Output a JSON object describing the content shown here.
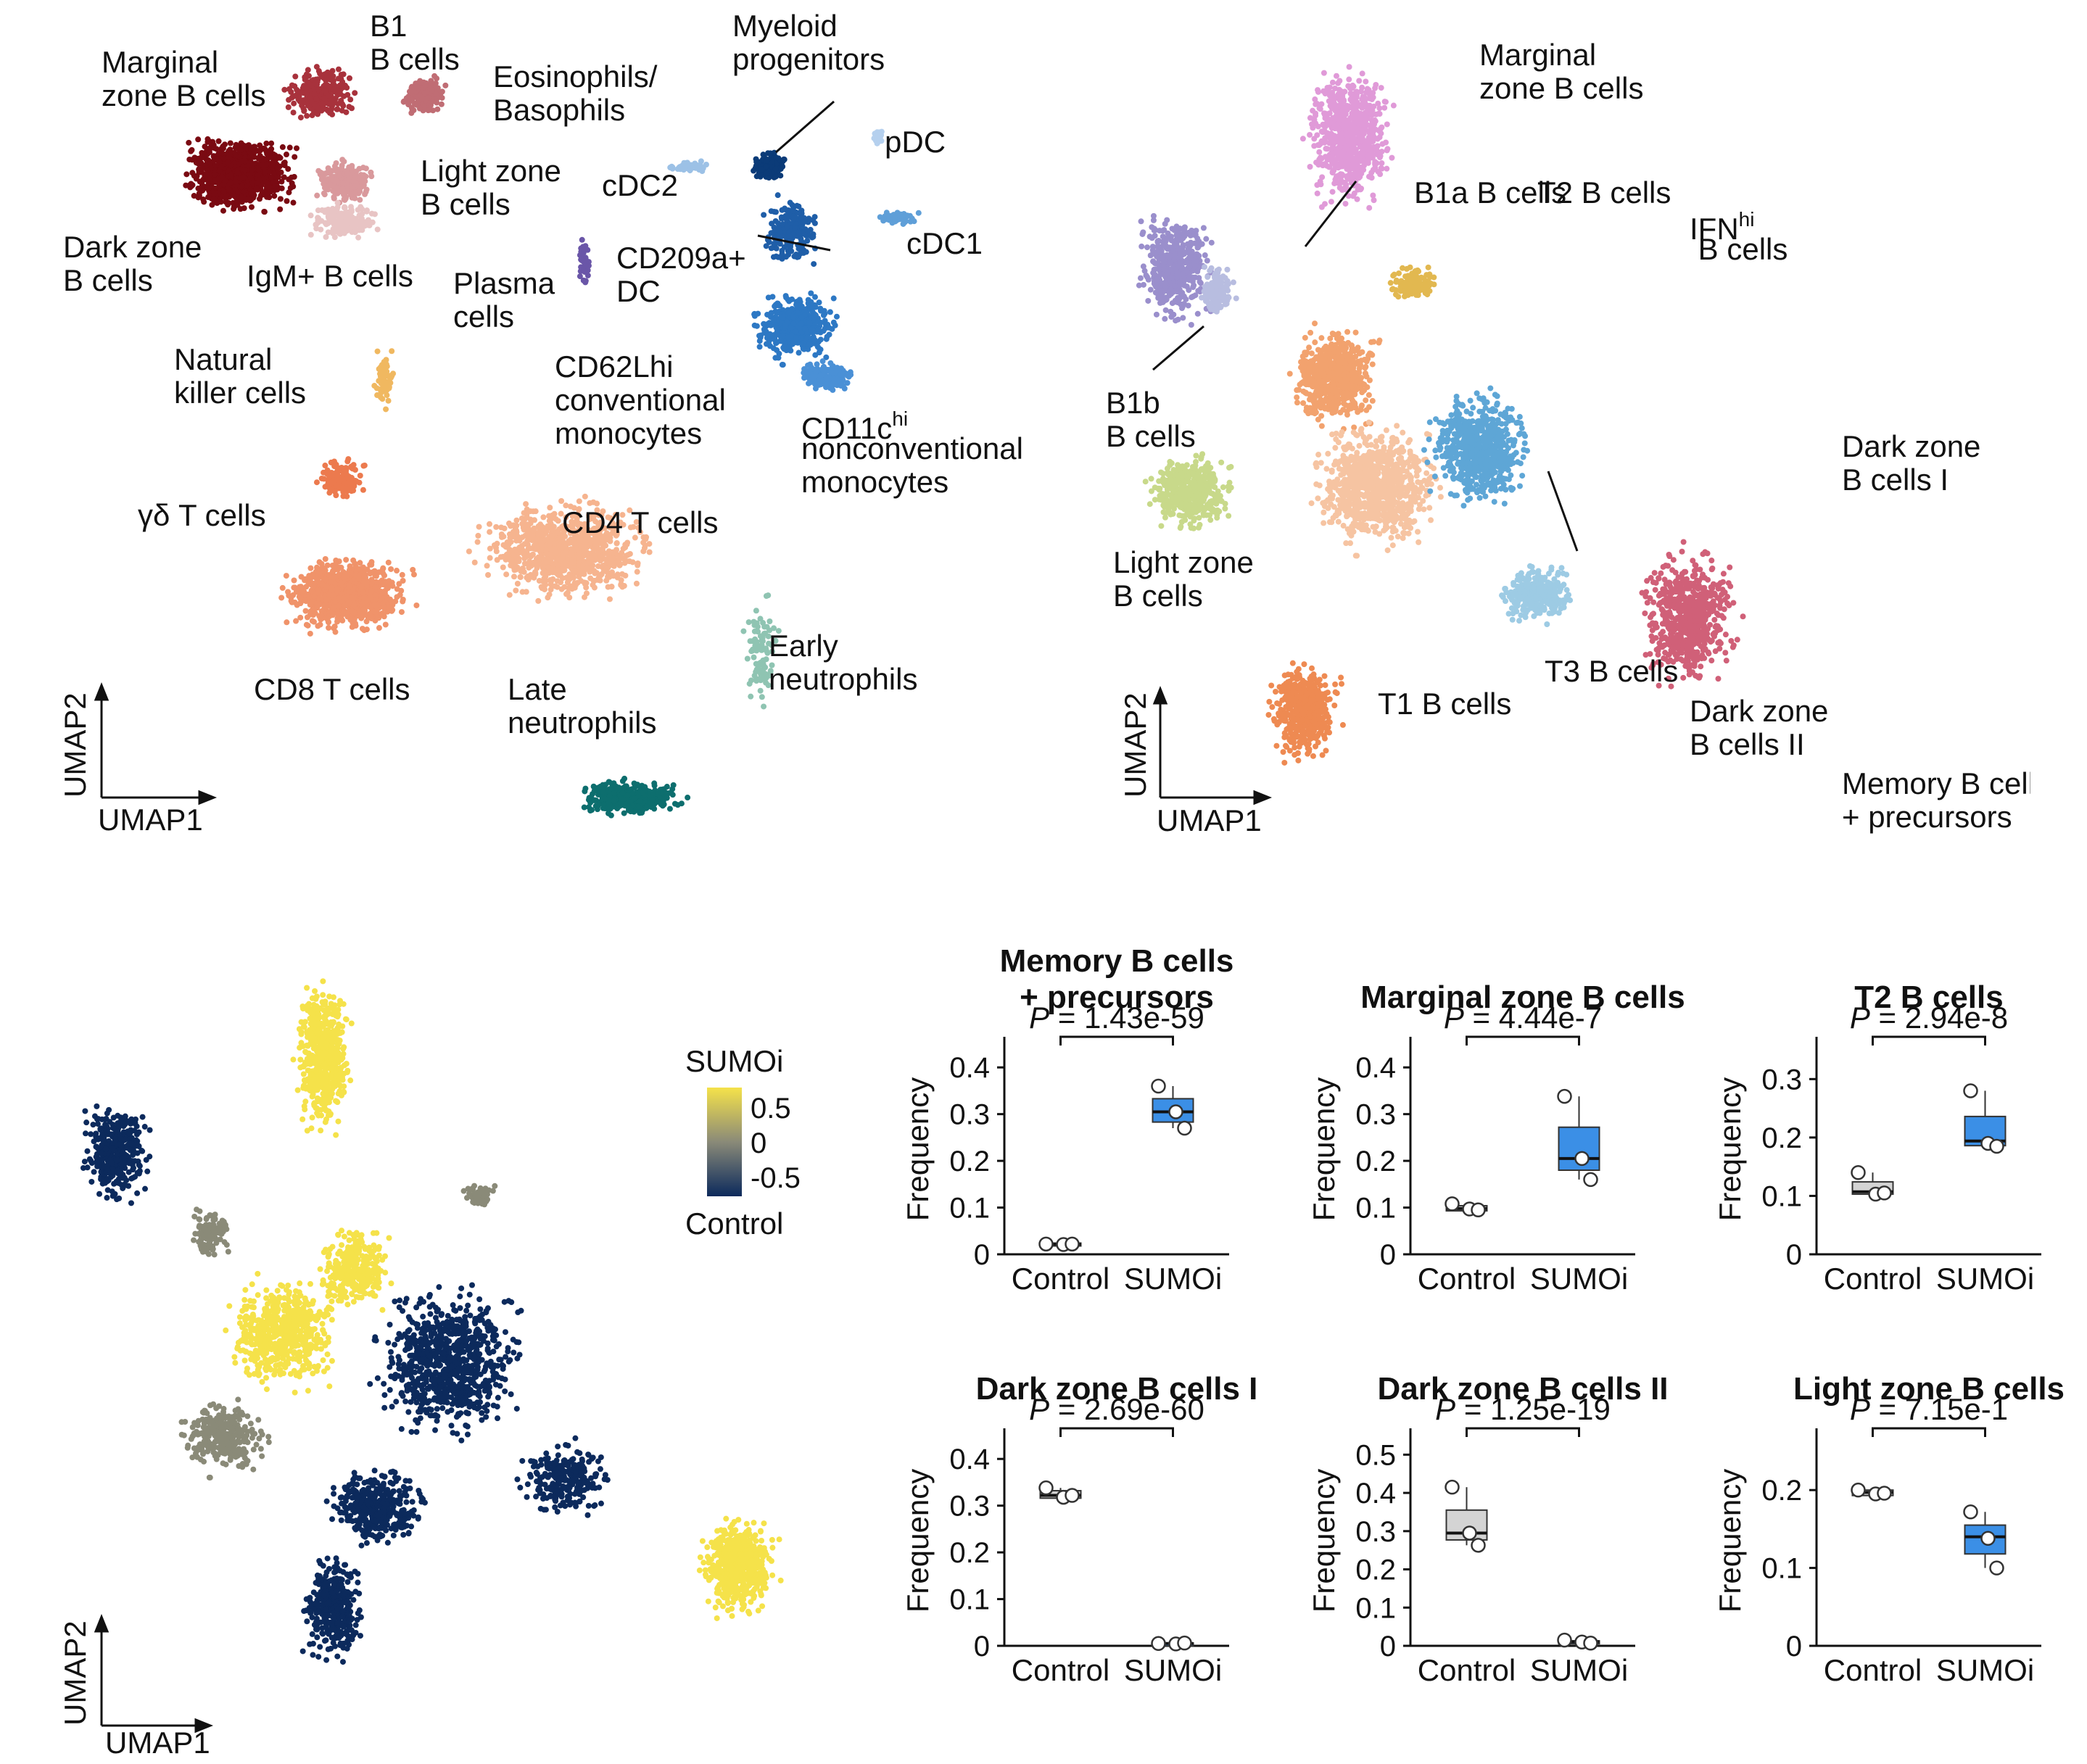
{
  "umap_all": {
    "axis_x": "UMAP1",
    "axis_y": "UMAP2",
    "labels": [
      {
        "id": "mzb",
        "lines": [
          "Marginal",
          "zone B cells"
        ]
      },
      {
        "id": "b1",
        "lines": [
          "B1",
          "B cells"
        ]
      },
      {
        "id": "eos",
        "lines": [
          "Eosinophils/",
          "Basophils"
        ]
      },
      {
        "id": "myp",
        "lines": [
          "Myeloid",
          "progenitors"
        ]
      },
      {
        "id": "pdc",
        "lines": [
          "pDC"
        ]
      },
      {
        "id": "lzb",
        "lines": [
          "Light zone",
          "B cells"
        ]
      },
      {
        "id": "cdc2",
        "lines": [
          "cDC2"
        ]
      },
      {
        "id": "dzb",
        "lines": [
          "Dark zone",
          "B cells"
        ]
      },
      {
        "id": "igm",
        "lines": [
          "IgM+ B cells"
        ]
      },
      {
        "id": "cd209",
        "lines": [
          "CD209a+",
          "DC"
        ]
      },
      {
        "id": "cdc1",
        "lines": [
          "cDC1"
        ]
      },
      {
        "id": "plasma",
        "lines": [
          "Plasma",
          "cells"
        ]
      },
      {
        "id": "nk",
        "lines": [
          "Natural",
          "killer cells"
        ]
      },
      {
        "id": "cd62",
        "lines": [
          "CD62Lhi",
          "conventional",
          "monocytes"
        ]
      },
      {
        "id": "cd11c",
        "lines": [
          "CD11c",
          "nonconventional",
          "monocytes"
        ],
        "sup": "hi"
      },
      {
        "id": "gdt",
        "lines": [
          "γδ T cells"
        ]
      },
      {
        "id": "cd4",
        "lines": [
          "CD4 T cells"
        ]
      },
      {
        "id": "cd8",
        "lines": [
          "CD8 T cells"
        ]
      },
      {
        "id": "late",
        "lines": [
          "Late",
          "neutrophils"
        ]
      },
      {
        "id": "early",
        "lines": [
          "Early",
          "neutrophils"
        ]
      }
    ],
    "colors": {
      "dzb": "#7a0a12",
      "mzb": "#a8323c",
      "b1": "#c06d74",
      "lzb": "#d9999c",
      "igm": "#e8c4c4",
      "eos": "#e06a8a",
      "myp": "#0b3b78",
      "cdc2": "#9cc1e6",
      "pdc": "#b5d0ee",
      "cdc1": "#5f9fd8",
      "cd209": "#1f5ea8",
      "plasma": "#6a56a8",
      "cd62": "#2d78c4",
      "cd11c": "#4a90d6",
      "nk": "#f0b860",
      "gdt": "#ec7a4e",
      "cd4": "#f6b48f",
      "cd8": "#f0936a",
      "late": "#0d6e6e",
      "early": "#8fc4b2"
    }
  },
  "umap_b": {
    "axis_x": "UMAP1",
    "axis_y": "UMAP2",
    "labels": [
      {
        "id": "mzb",
        "lines": [
          "Marginal",
          "zone B cells"
        ]
      },
      {
        "id": "b1a",
        "lines": [
          "B1a B cells"
        ]
      },
      {
        "id": "t2",
        "lines": [
          "T2 B cells"
        ]
      },
      {
        "id": "ifn",
        "lines": [
          "IFN",
          " B cells"
        ],
        "sup": "hi"
      },
      {
        "id": "b1b",
        "lines": [
          "B1b",
          "B cells"
        ]
      },
      {
        "id": "dz1",
        "lines": [
          "Dark zone",
          "B cells I"
        ]
      },
      {
        "id": "lz",
        "lines": [
          "Light zone",
          "B cells"
        ]
      },
      {
        "id": "t3",
        "lines": [
          "T3 B cells"
        ]
      },
      {
        "id": "t1",
        "lines": [
          "T1 B cells"
        ]
      },
      {
        "id": "dz2",
        "lines": [
          "Dark zone",
          "B cells II"
        ]
      },
      {
        "id": "mem",
        "lines": [
          "Memory B cells",
          "+ precursors"
        ]
      }
    ],
    "colors": {
      "mzb": "#e09ad8",
      "b1a": "#9a8fcc",
      "b1b": "#b8bde0",
      "ifn": "#e2b850",
      "t2": "#f2a26e",
      "t3": "#f6c4a2",
      "lz": "#c8d98a",
      "dz1": "#5ea6d6",
      "dz2": "#9dcbe4",
      "t1": "#ee8a52",
      "mem": "#d06078"
    }
  },
  "umap_sumo": {
    "axis_x": "UMAP1",
    "axis_y": "UMAP2",
    "legend_title": "SUMOi",
    "legend_ticks": [
      "0.5",
      "0",
      "-0.5"
    ],
    "legend_bottom": "Control",
    "color_high": "#f5e24a",
    "color_mid": "#8a8a78",
    "color_low": "#0c2a5c"
  },
  "chart_data": [
    {
      "type": "box",
      "title": [
        "Memory B cells",
        "+ precursors"
      ],
      "pvalue": "1.43e-59",
      "ylabel": "Frequency",
      "categories": [
        "Control",
        "SUMOi"
      ],
      "ylim": [
        0,
        0.45
      ],
      "yticks": [
        "0",
        "0.1",
        "0.2",
        "0.3",
        "0.4"
      ],
      "ytickvals": [
        0,
        0.1,
        0.2,
        0.3,
        0.4
      ],
      "boxes": [
        {
          "q1": 0.021,
          "med": 0.022,
          "q3": 0.024,
          "lo": 0.021,
          "hi": 0.024,
          "pts": [
            0.022,
            0.021,
            0.022
          ]
        },
        {
          "q1": 0.283,
          "med": 0.305,
          "q3": 0.333,
          "lo": 0.27,
          "hi": 0.36,
          "pts": [
            0.36,
            0.305,
            0.27
          ]
        }
      ]
    },
    {
      "type": "box",
      "title": [
        "Marginal zone B cells"
      ],
      "pvalue": "4.44e-7",
      "ylabel": "Frequency",
      "categories": [
        "Control",
        "SUMOi"
      ],
      "ylim": [
        0,
        0.45
      ],
      "yticks": [
        "0",
        "0.1",
        "0.2",
        "0.3",
        "0.4"
      ],
      "ytickvals": [
        0,
        0.1,
        0.2,
        0.3,
        0.4
      ],
      "boxes": [
        {
          "q1": 0.093,
          "med": 0.098,
          "q3": 0.104,
          "lo": 0.093,
          "hi": 0.108,
          "pts": [
            0.108,
            0.097,
            0.095
          ]
        },
        {
          "q1": 0.18,
          "med": 0.205,
          "q3": 0.272,
          "lo": 0.16,
          "hi": 0.338,
          "pts": [
            0.338,
            0.205,
            0.16
          ]
        }
      ]
    },
    {
      "type": "box",
      "title": [
        "T2 B cells"
      ],
      "pvalue": "2.94e-8",
      "ylabel": "Frequency",
      "categories": [
        "Control",
        "SUMOi"
      ],
      "ylim": [
        0,
        0.36
      ],
      "yticks": [
        "0",
        "0.1",
        "0.2",
        "0.3"
      ],
      "ytickvals": [
        0,
        0.1,
        0.2,
        0.3
      ],
      "boxes": [
        {
          "q1": 0.103,
          "med": 0.107,
          "q3": 0.124,
          "lo": 0.102,
          "hi": 0.14,
          "pts": [
            0.14,
            0.103,
            0.105
          ]
        },
        {
          "q1": 0.186,
          "med": 0.194,
          "q3": 0.236,
          "lo": 0.18,
          "hi": 0.28,
          "pts": [
            0.28,
            0.19,
            0.185
          ]
        }
      ]
    },
    {
      "type": "box",
      "title": [
        "Dark zone B cells I"
      ],
      "pvalue": "2.69e-60",
      "ylabel": "Frequency",
      "categories": [
        "Control",
        "SUMOi"
      ],
      "ylim": [
        0,
        0.45
      ],
      "yticks": [
        "0",
        "0.1",
        "0.2",
        "0.3",
        "0.4"
      ],
      "ytickvals": [
        0,
        0.1,
        0.2,
        0.3,
        0.4
      ],
      "boxes": [
        {
          "q1": 0.316,
          "med": 0.322,
          "q3": 0.332,
          "lo": 0.316,
          "hi": 0.338,
          "pts": [
            0.338,
            0.318,
            0.322
          ]
        },
        {
          "q1": 0.004,
          "med": 0.005,
          "q3": 0.006,
          "lo": 0.004,
          "hi": 0.006,
          "pts": [
            0.005,
            0.004,
            0.006
          ]
        }
      ]
    },
    {
      "type": "box",
      "title": [
        "Dark zone B cells II"
      ],
      "pvalue": "1.25e-19",
      "ylabel": "Frequency",
      "categories": [
        "Control",
        "SUMOi"
      ],
      "ylim": [
        0,
        0.55
      ],
      "yticks": [
        "0",
        "0.1",
        "0.2",
        "0.3",
        "0.4",
        "0.5"
      ],
      "ytickvals": [
        0,
        0.1,
        0.2,
        0.3,
        0.4,
        0.5
      ],
      "boxes": [
        {
          "q1": 0.277,
          "med": 0.295,
          "q3": 0.355,
          "lo": 0.263,
          "hi": 0.415,
          "pts": [
            0.415,
            0.295,
            0.263
          ]
        },
        {
          "q1": 0.008,
          "med": 0.011,
          "q3": 0.013,
          "lo": 0.007,
          "hi": 0.015,
          "pts": [
            0.015,
            0.01,
            0.007
          ]
        }
      ]
    },
    {
      "type": "box",
      "title": [
        "Light zone B cells"
      ],
      "pvalue": "7.15e-1",
      "ylabel": "Frequency",
      "categories": [
        "Control",
        "SUMOi"
      ],
      "ylim": [
        0,
        0.27
      ],
      "yticks": [
        "0",
        "0.1",
        "0.2"
      ],
      "ytickvals": [
        0,
        0.1,
        0.2
      ],
      "boxes": [
        {
          "q1": 0.193,
          "med": 0.197,
          "q3": 0.2,
          "lo": 0.192,
          "hi": 0.2,
          "pts": [
            0.2,
            0.195,
            0.196
          ]
        },
        {
          "q1": 0.118,
          "med": 0.14,
          "q3": 0.155,
          "lo": 0.1,
          "hi": 0.172,
          "pts": [
            0.172,
            0.138,
            0.1
          ]
        }
      ]
    }
  ],
  "box_colors": {
    "control": "#d4d4d4",
    "sumoi": "#3b8fe6"
  },
  "p_prefix": "P"
}
